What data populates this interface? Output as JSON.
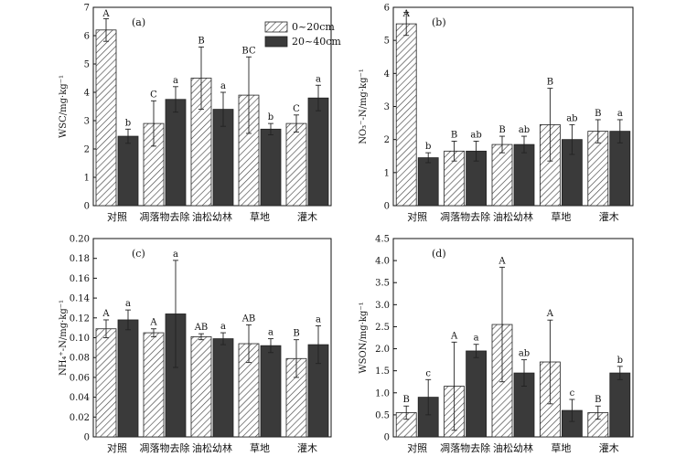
{
  "legend": {
    "items": [
      {
        "label": "0~20cm",
        "pattern": "hatch",
        "color": "#ffffff"
      },
      {
        "label": "20~40cm",
        "pattern": "solid",
        "color": "#3a3a3a"
      }
    ]
  },
  "chart_data": [
    {
      "type": "bar",
      "panel_label": "(a)",
      "ylabel": "WSC/mg·kg⁻¹",
      "ylim": [
        0,
        7
      ],
      "yticks": [
        "0",
        "1",
        "2",
        "3",
        "4",
        "5",
        "6",
        "7"
      ],
      "categories": [
        "对照",
        "凋落物去除",
        "油松幼林",
        "草地",
        "灌木"
      ],
      "series": [
        {
          "name": "0~20cm",
          "values": [
            6.2,
            2.9,
            4.5,
            3.9,
            2.9
          ],
          "errors": [
            0.4,
            0.8,
            1.1,
            1.35,
            0.3
          ],
          "labels": [
            "A",
            "C",
            "B",
            "BC",
            "C"
          ]
        },
        {
          "name": "20~40cm",
          "values": [
            2.45,
            3.75,
            3.4,
            2.7,
            3.8
          ],
          "errors": [
            0.25,
            0.45,
            0.6,
            0.2,
            0.45
          ],
          "labels": [
            "b",
            "a",
            "a",
            "b",
            "a"
          ]
        }
      ],
      "legend": "top-right"
    },
    {
      "type": "bar",
      "panel_label": "(b)",
      "ylabel": "NO₃⁻-N/mg·kg⁻¹",
      "ylim": [
        0,
        6
      ],
      "yticks": [
        "0",
        "1",
        "2",
        "3",
        "4",
        "5",
        "6"
      ],
      "categories": [
        "对照",
        "凋落物去除",
        "油松幼林",
        "草地",
        "灌木"
      ],
      "series": [
        {
          "name": "0~20cm",
          "values": [
            5.5,
            1.65,
            1.85,
            2.45,
            2.25
          ],
          "errors": [
            0.35,
            0.3,
            0.25,
            1.1,
            0.35
          ],
          "labels": [
            "A",
            "B",
            "B",
            "B",
            "B"
          ]
        },
        {
          "name": "20~40cm",
          "values": [
            1.45,
            1.65,
            1.85,
            2.0,
            2.25
          ],
          "errors": [
            0.15,
            0.3,
            0.25,
            0.45,
            0.35
          ],
          "labels": [
            "b",
            "ab",
            "ab",
            "ab",
            "a"
          ]
        }
      ]
    },
    {
      "type": "bar",
      "panel_label": "(c)",
      "ylabel": "NH₄⁺-N/mg·kg⁻¹",
      "ylim": [
        0,
        0.2
      ],
      "yticks": [
        "0",
        "0.02",
        "0.04",
        "0.06",
        "0.08",
        "0.10",
        "0.12",
        "0.14",
        "0.16",
        "0.18",
        "0.20"
      ],
      "categories": [
        "对照",
        "凋落物去除",
        "油松幼林",
        "草地",
        "灌木"
      ],
      "series": [
        {
          "name": "0~20cm",
          "values": [
            0.109,
            0.105,
            0.101,
            0.094,
            0.079
          ],
          "errors": [
            0.009,
            0.004,
            0.003,
            0.019,
            0.019
          ],
          "labels": [
            "A",
            "A",
            "AB",
            "AB",
            "B"
          ]
        },
        {
          "name": "20~40cm",
          "values": [
            0.118,
            0.124,
            0.099,
            0.092,
            0.093
          ],
          "errors": [
            0.01,
            0.054,
            0.006,
            0.007,
            0.019
          ],
          "labels": [
            "a",
            "a",
            "a",
            "a",
            "a"
          ]
        }
      ]
    },
    {
      "type": "bar",
      "panel_label": "(d)",
      "ylabel": "WSON/mg·kg⁻¹",
      "ylim": [
        0,
        4.5
      ],
      "yticks": [
        "0",
        "0.5",
        "1.0",
        "1.5",
        "2.0",
        "2.5",
        "3.0",
        "3.5",
        "4.0",
        "4.5"
      ],
      "categories": [
        "对照",
        "凋落物去除",
        "油松幼林",
        "草地",
        "灌木"
      ],
      "series": [
        {
          "name": "0~20cm",
          "values": [
            0.55,
            1.15,
            2.55,
            1.7,
            0.55
          ],
          "errors": [
            0.15,
            1.0,
            1.3,
            0.95,
            0.15
          ],
          "labels": [
            "B",
            "A",
            "A",
            "A",
            "B"
          ]
        },
        {
          "name": "20~40cm",
          "values": [
            0.9,
            1.95,
            1.45,
            0.6,
            1.45
          ],
          "errors": [
            0.4,
            0.15,
            0.3,
            0.25,
            0.15
          ],
          "labels": [
            "c",
            "a",
            "ab",
            "c",
            "b"
          ]
        }
      ]
    }
  ]
}
